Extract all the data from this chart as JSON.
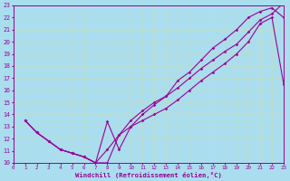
{
  "xlabel": "Windchill (Refroidissement éolien,°C)",
  "xlim": [
    0,
    23
  ],
  "ylim": [
    10,
    23
  ],
  "xticks": [
    0,
    1,
    2,
    3,
    4,
    5,
    6,
    7,
    8,
    9,
    10,
    11,
    12,
    13,
    14,
    15,
    16,
    17,
    18,
    19,
    20,
    21,
    22,
    23
  ],
  "yticks": [
    10,
    11,
    12,
    13,
    14,
    15,
    16,
    17,
    18,
    19,
    20,
    21,
    22,
    23
  ],
  "color": "#990099",
  "bg_color": "#aaddee",
  "grid_color": "#bbddcc",
  "trace1_x": [
    1,
    2,
    3,
    4,
    5,
    6,
    7,
    8,
    9,
    10,
    11,
    12,
    13,
    14,
    15,
    16,
    17,
    18,
    19,
    20,
    21,
    22,
    23
  ],
  "trace1_y": [
    13.5,
    12.5,
    11.8,
    11.1,
    10.8,
    10.5,
    10.0,
    13.4,
    11.1,
    13.0,
    14.0,
    14.8,
    15.5,
    16.8,
    17.5,
    18.5,
    19.5,
    20.2,
    21.0,
    22.0,
    22.5,
    22.8,
    22.0
  ],
  "trace2_x": [
    1,
    2,
    3,
    4,
    5,
    6,
    7,
    8,
    9,
    10,
    11,
    12,
    13,
    14,
    15,
    16,
    17,
    18,
    19,
    20,
    21,
    22,
    23
  ],
  "trace2_y": [
    13.5,
    12.5,
    11.8,
    11.1,
    10.8,
    10.5,
    10.0,
    11.1,
    12.3,
    13.5,
    14.3,
    15.0,
    15.5,
    16.2,
    17.0,
    17.8,
    18.5,
    19.2,
    19.8,
    20.8,
    21.8,
    22.3,
    23.2
  ],
  "trace3_x": [
    1,
    2,
    3,
    4,
    5,
    6,
    7,
    8,
    9,
    10,
    11,
    12,
    13,
    14,
    15,
    16,
    17,
    18,
    19,
    20,
    21,
    22,
    23
  ],
  "trace3_y": [
    13.5,
    12.5,
    11.8,
    11.1,
    10.8,
    10.5,
    10.0,
    10.0,
    12.3,
    13.0,
    13.5,
    14.0,
    14.5,
    15.2,
    16.0,
    16.8,
    17.5,
    18.2,
    19.0,
    20.0,
    21.5,
    22.0,
    16.5
  ]
}
